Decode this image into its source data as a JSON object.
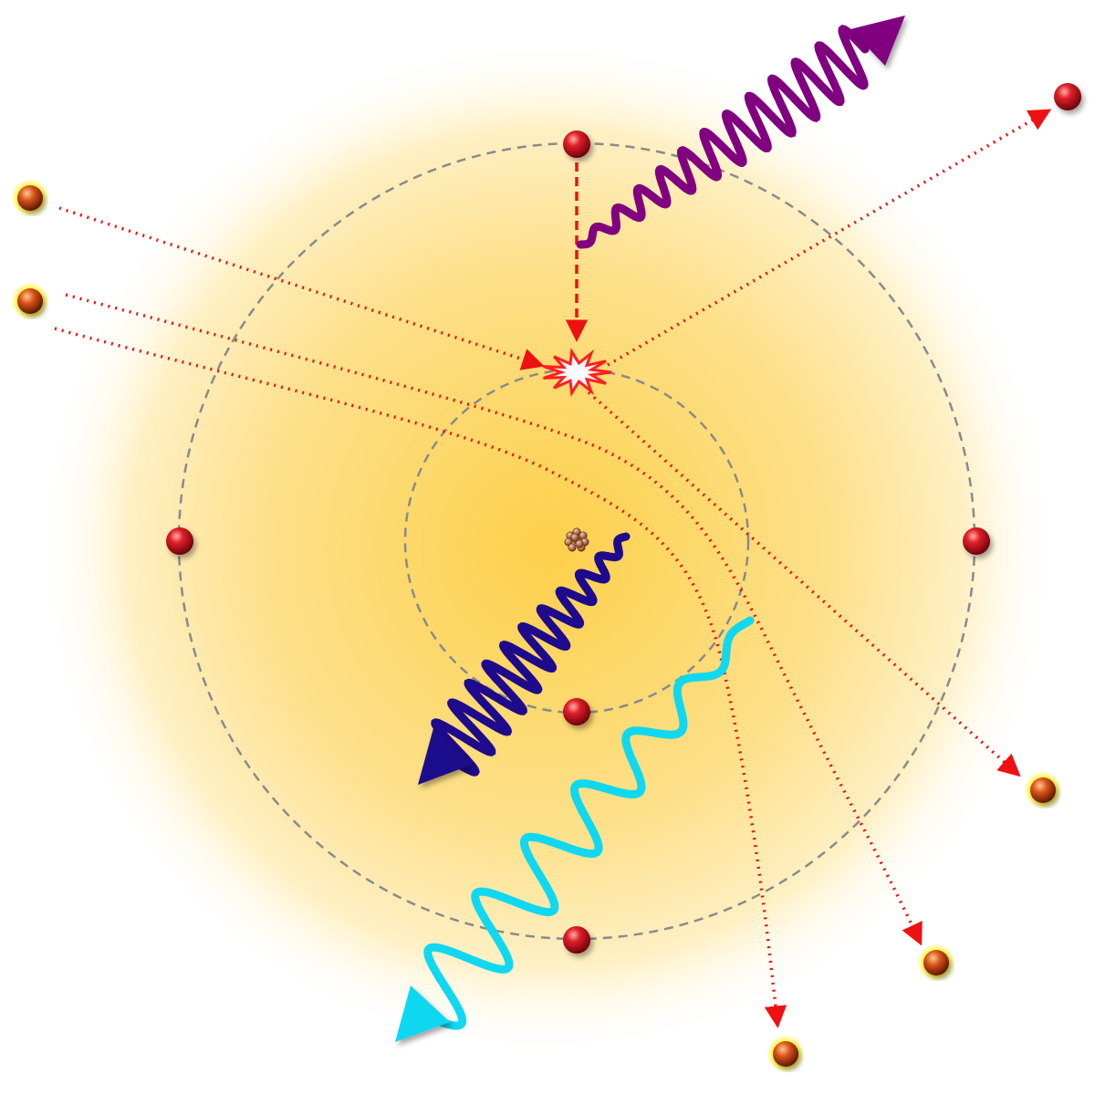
{
  "colors": {
    "glow_center": "#fdd04a",
    "glow_edge": "#ffffff",
    "orbit": "#8a8a8a",
    "electron": "#c8101a",
    "path": "#ee1111",
    "photon_purple": "#800080",
    "photon_navy": "#1e0a8c",
    "photon_cyan": "#10d8f0",
    "flash": "#ff2020",
    "nucleus": "#a0522d",
    "halo": "#fff200"
  },
  "icons": {
    "nucleus": "nucleus-icon",
    "collision": "collision-flash-icon",
    "electron": "electron-icon"
  }
}
